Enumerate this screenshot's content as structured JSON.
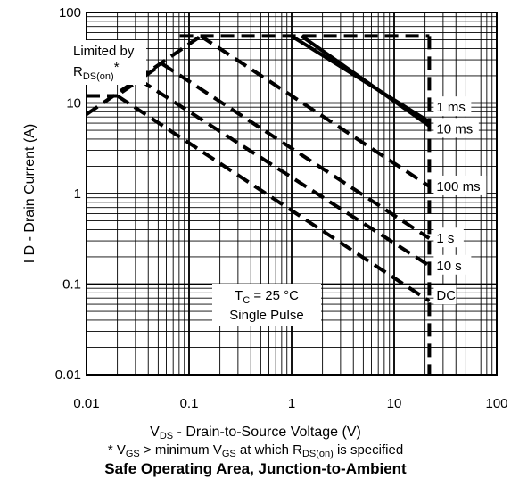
{
  "chart_data": {
    "type": "line",
    "title": "Safe Operating Area, Junction-to-Ambient",
    "xlabel": {
      "main": "V",
      "sub": "DS",
      "rest": " - Drain-to-Source Voltage (V)"
    },
    "ylabel": "I D - Drain Current (A)",
    "x_scale": "log",
    "y_scale": "log",
    "xlim": [
      0.01,
      100
    ],
    "ylim": [
      0.01,
      100
    ],
    "grid": true,
    "x_ticks": [
      "0.01",
      "0.1",
      "1",
      "10",
      "100"
    ],
    "y_ticks": [
      "0.01",
      "0.1",
      "1",
      "10",
      "100"
    ],
    "footnote": {
      "a": "* V",
      "a_sub": "GS",
      "b": " > minimum V",
      "b_sub": "GS",
      "c": " at which R",
      "c_sub": "DS(on)",
      "d": " is specified"
    },
    "annotations": {
      "limited_line1": "Limited by",
      "limited_r": "R",
      "limited_sub": "DS(on)",
      "limited_star": "*",
      "tc_main": "T",
      "tc_sub": "C",
      "tc_rest": " = 25 °C",
      "pulse": "Single Pulse"
    },
    "vds_max": 22,
    "id_max": 55,
    "series": [
      {
        "name": "1 ms",
        "style": "solid",
        "points": [
          [
            1,
            55
          ],
          [
            22,
            6.2
          ]
        ]
      },
      {
        "name": "10 ms",
        "style": "solid",
        "points": [
          [
            1.25,
            55
          ],
          [
            22,
            5.6
          ]
        ]
      },
      {
        "name": "100 ms",
        "style": "dashed",
        "points": [
          [
            0.13,
            55
          ],
          [
            22,
            1.2
          ]
        ]
      },
      {
        "name": "1 s",
        "style": "dashed",
        "points": [
          [
            0.055,
            27
          ],
          [
            22,
            0.32
          ]
        ]
      },
      {
        "name": "10 s",
        "style": "dashed",
        "points": [
          [
            0.033,
            18
          ],
          [
            22,
            0.16
          ]
        ]
      },
      {
        "name": "DC",
        "style": "dashed",
        "points": [
          [
            0.02,
            12
          ],
          [
            22,
            0.065
          ]
        ]
      }
    ],
    "limit_line": {
      "style": "dashed",
      "points": [
        [
          0.01,
          7.5
        ],
        [
          0.13,
          55
        ]
      ]
    },
    "dc_flat": {
      "style": "dashed",
      "points": [
        [
          0.01,
          12
        ],
        [
          0.02,
          12
        ]
      ]
    },
    "label_y": {
      "1 ms": 9.0,
      "10 ms": 5.2,
      "100 ms": 1.2,
      "1 s": 0.32,
      "10 s": 0.16,
      "DC": 0.075
    }
  }
}
